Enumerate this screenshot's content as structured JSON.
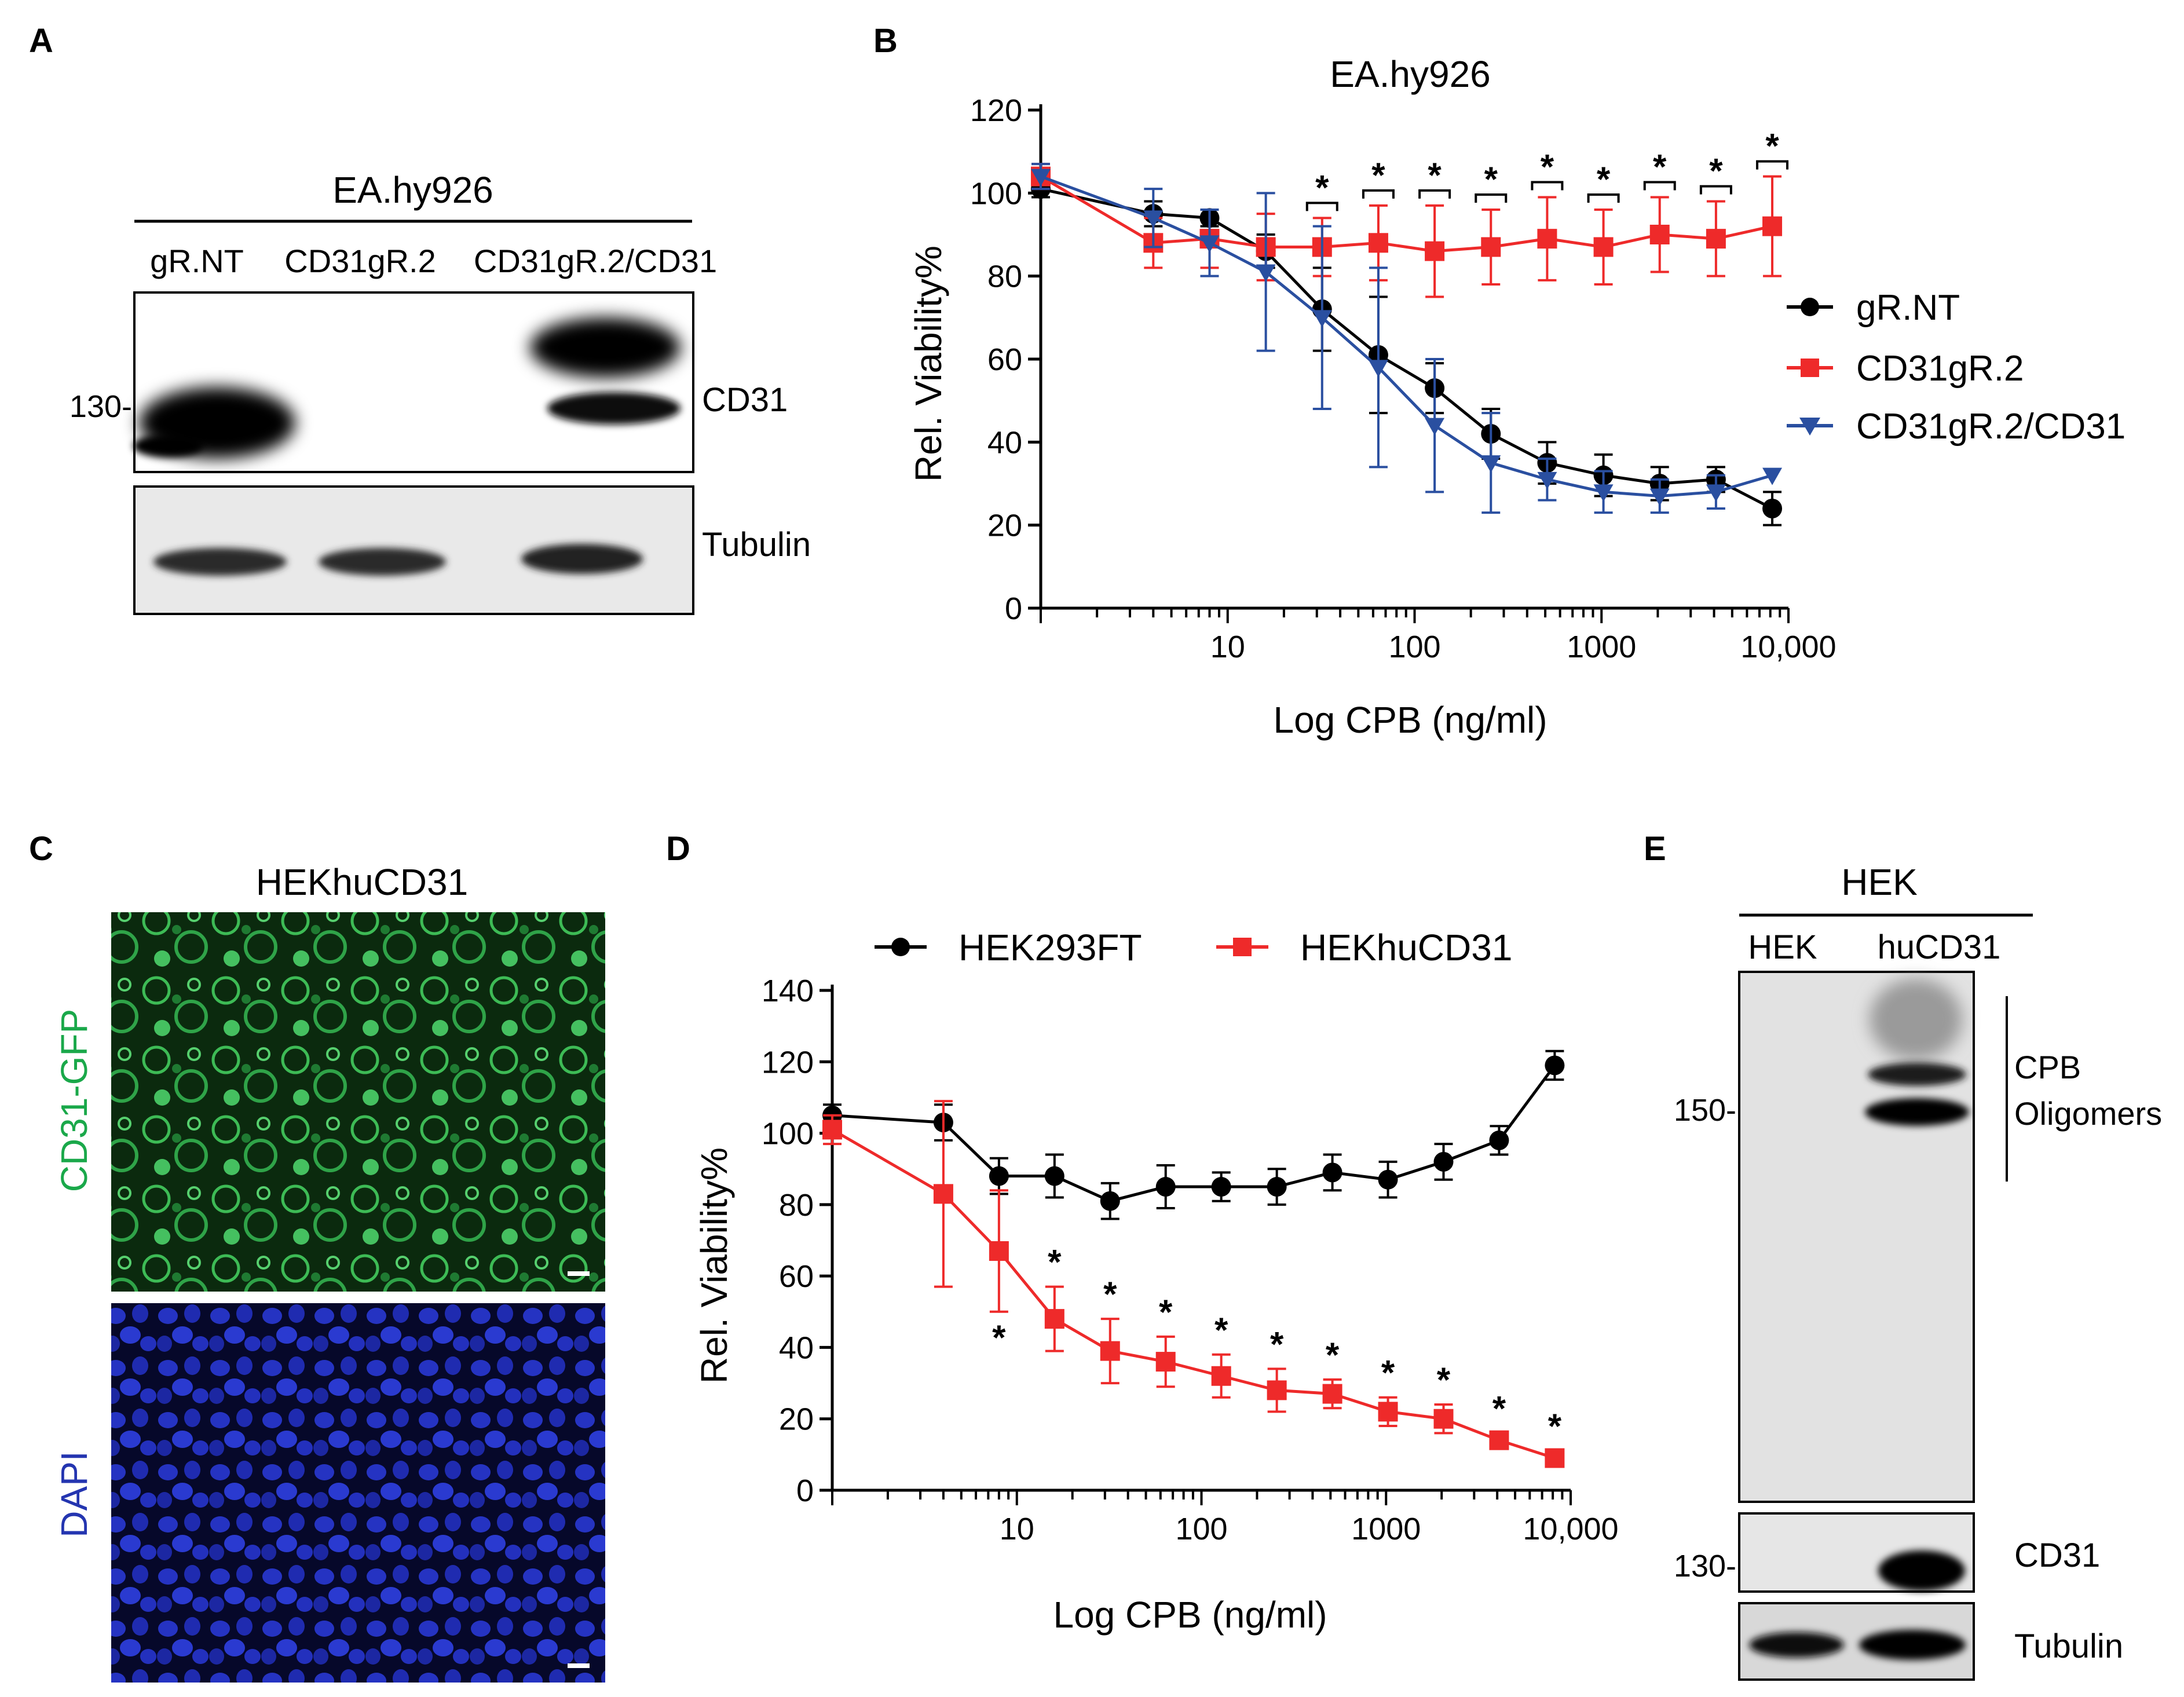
{
  "panels": {
    "a": {
      "letter": "A",
      "cell_line": "EA.hy926",
      "lanes": [
        "gR.NT",
        "CD31gR.2",
        "CD31gR.2/CD31"
      ],
      "marker": "130-",
      "blots": [
        "CD31",
        "Tubulin"
      ]
    },
    "b": {
      "letter": "B",
      "title": "EA.hy926",
      "xlabel": "Log CPB (ng/ml)",
      "ylabel": "Rel. Viability%",
      "yticks": [
        "0",
        "20",
        "40",
        "60",
        "80",
        "100",
        "120"
      ],
      "xticks": [
        "10",
        "100",
        "1000",
        "10,000"
      ],
      "legend": [
        "gR.NT",
        "CD31gR.2",
        "CD31gR.2/CD31"
      ],
      "sig": "*"
    },
    "c": {
      "letter": "C",
      "title": "HEKhuCD31",
      "top_label": "CD31-GFP",
      "bottom_label": "DAPI"
    },
    "d": {
      "letter": "D",
      "xlabel": "Log CPB (ng/ml)",
      "ylabel": "Rel. Viability%",
      "yticks": [
        "0",
        "20",
        "40",
        "60",
        "80",
        "100",
        "120",
        "140"
      ],
      "xticks": [
        "10",
        "100",
        "1000",
        "10,000"
      ],
      "legend": [
        "HEK293FT",
        "HEKhuCD31"
      ],
      "sig": "*"
    },
    "e": {
      "letter": "E",
      "group": "HEK",
      "lanes": [
        "HEK",
        "huCD31"
      ],
      "marker_top": "150-",
      "marker_bottom": "130-",
      "oligomer_label_1": "CPB",
      "oligomer_label_2": "Oligomers",
      "blots": [
        "CD31",
        "Tubulin"
      ]
    }
  },
  "chart_data": [
    {
      "type": "line",
      "panel": "B",
      "title": "EA.hy926",
      "xlabel": "Log CPB (ng/ml)",
      "ylabel": "Rel. Viability%",
      "xscale": "log",
      "xlim": [
        1,
        10000
      ],
      "ylim": [
        0,
        120
      ],
      "x": [
        1,
        4,
        8,
        16,
        32,
        64,
        128,
        256,
        512,
        1024,
        2048,
        4096,
        8192
      ],
      "series": [
        {
          "name": "gR.NT",
          "color": "#000000",
          "marker": "circle",
          "values": [
            101,
            95,
            94,
            86,
            72,
            61,
            53,
            42,
            35,
            32,
            30,
            31,
            24
          ],
          "errors": [
            2,
            3,
            2,
            4,
            10,
            14,
            6,
            6,
            5,
            5,
            4,
            3,
            4
          ]
        },
        {
          "name": "CD31gR.2",
          "color": "#ee2a2a",
          "marker": "square",
          "values": [
            104,
            88,
            89,
            87,
            87,
            88,
            86,
            87,
            89,
            87,
            90,
            89,
            92
          ],
          "errors": [
            3,
            6,
            7,
            8,
            7,
            9,
            11,
            9,
            10,
            9,
            9,
            9,
            12
          ]
        },
        {
          "name": "CD31gR.2/CD31",
          "color": "#2a4fa0",
          "marker": "triangle-down",
          "values": [
            104,
            94,
            88,
            81,
            70,
            58,
            44,
            35,
            31,
            28,
            27,
            28,
            32
          ],
          "errors": [
            3,
            7,
            8,
            19,
            22,
            24,
            16,
            12,
            5,
            5,
            4,
            4,
            0
          ]
        }
      ],
      "significance": [
        32,
        64,
        128,
        256,
        512,
        1024,
        2048,
        4096,
        8192
      ]
    },
    {
      "type": "line",
      "panel": "D",
      "xlabel": "Log CPB (ng/ml)",
      "ylabel": "Rel. Viability%",
      "xscale": "log",
      "xlim": [
        1,
        10000
      ],
      "ylim": [
        0,
        140
      ],
      "legend_position": "top",
      "x": [
        1,
        4,
        8,
        16,
        32,
        64,
        128,
        256,
        512,
        1024,
        2048,
        4096,
        8192
      ],
      "series": [
        {
          "name": "HEK293FT",
          "color": "#000000",
          "marker": "circle",
          "values": [
            105,
            103,
            88,
            88,
            81,
            85,
            85,
            85,
            89,
            87,
            92,
            98,
            119
          ],
          "errors": [
            3,
            5,
            5,
            6,
            5,
            6,
            4,
            5,
            5,
            5,
            5,
            4,
            4
          ]
        },
        {
          "name": "HEKhuCD31",
          "color": "#ee2a2a",
          "marker": "square",
          "values": [
            101,
            83,
            67,
            48,
            39,
            36,
            32,
            28,
            27,
            22,
            20,
            14,
            9
          ],
          "errors": [
            4,
            26,
            17,
            9,
            9,
            7,
            6,
            6,
            4,
            4,
            4,
            2,
            2
          ]
        }
      ],
      "significance": [
        8,
        16,
        32,
        64,
        128,
        256,
        512,
        1024,
        2048,
        4096,
        8192
      ]
    }
  ]
}
